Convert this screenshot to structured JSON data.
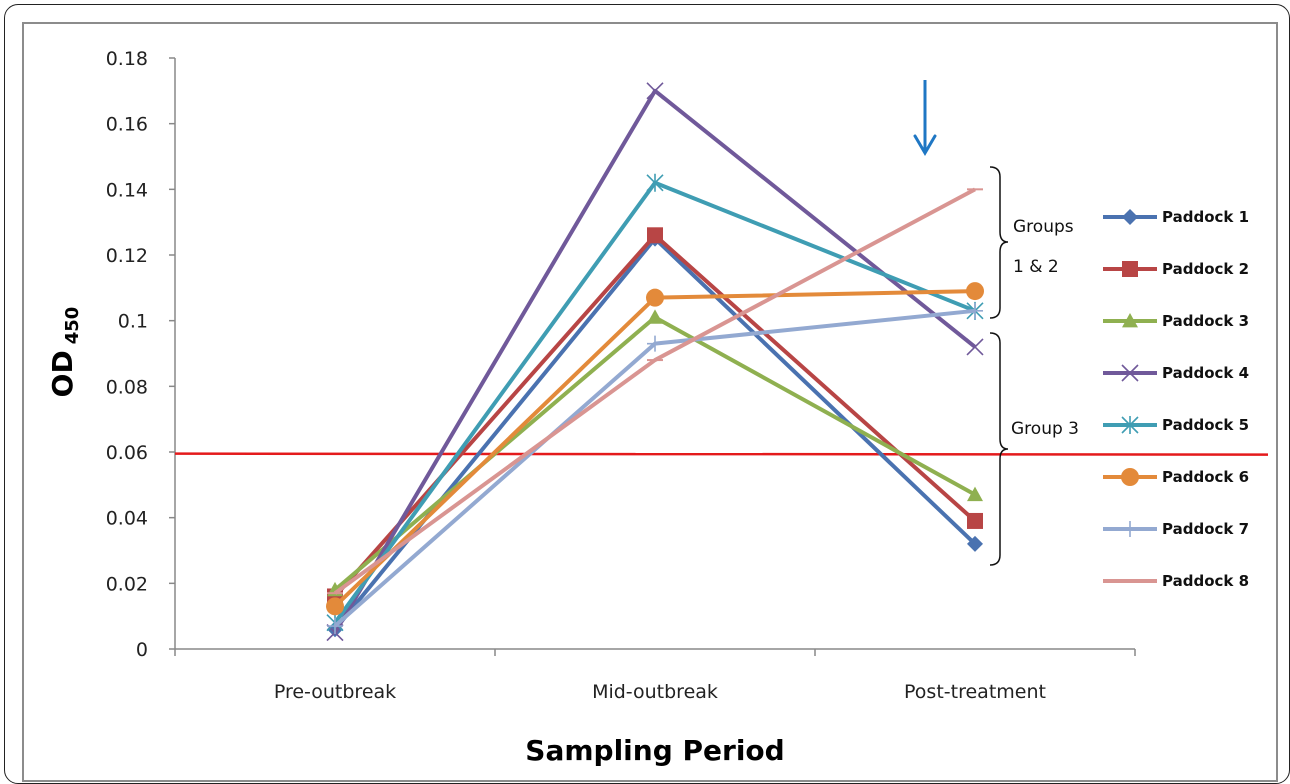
{
  "chart_data": {
    "type": "line",
    "title": "",
    "xlabel": "Sampling Period",
    "ylabel_main": "OD",
    "ylabel_sub": "450",
    "categories": [
      "Pre-outbreak",
      "Mid-outbreak",
      "Post-treatment"
    ],
    "ylim": [
      0,
      0.18
    ],
    "yticks": [
      "0",
      "0.02",
      "0.04",
      "0.06",
      "0.08",
      "0.1",
      "0.12",
      "0.14",
      "0.16",
      "0.18"
    ],
    "threshold": 0.0595,
    "threshold_color": "#e41a1c",
    "arrow_color": "#1f77c4",
    "legend_position": "right",
    "grid": false,
    "series": [
      {
        "name": "Paddock 1",
        "values": [
          0.006,
          0.125,
          0.032
        ],
        "color": "#4a72b0",
        "marker": "diamond"
      },
      {
        "name": "Paddock 2",
        "values": [
          0.016,
          0.126,
          0.039
        ],
        "color": "#b84545",
        "marker": "square"
      },
      {
        "name": "Paddock 3",
        "values": [
          0.018,
          0.101,
          0.047
        ],
        "color": "#8fb050",
        "marker": "triangle"
      },
      {
        "name": "Paddock 4",
        "values": [
          0.005,
          0.17,
          0.092
        ],
        "color": "#70599a",
        "marker": "x"
      },
      {
        "name": "Paddock 5",
        "values": [
          0.008,
          0.142,
          0.103
        ],
        "color": "#3f9db3",
        "marker": "star"
      },
      {
        "name": "Paddock 6",
        "values": [
          0.013,
          0.107,
          0.109
        ],
        "color": "#e38a3a",
        "marker": "circle"
      },
      {
        "name": "Paddock 7",
        "values": [
          0.007,
          0.093,
          0.103
        ],
        "color": "#93a9d1",
        "marker": "plus"
      },
      {
        "name": "Paddock 8",
        "values": [
          0.017,
          0.088,
          0.14
        ],
        "color": "#d99592",
        "marker": "dash"
      }
    ],
    "annotations": {
      "group12_line1": "Groups",
      "group12_line2": "1 & 2",
      "group3": "Group 3"
    }
  }
}
